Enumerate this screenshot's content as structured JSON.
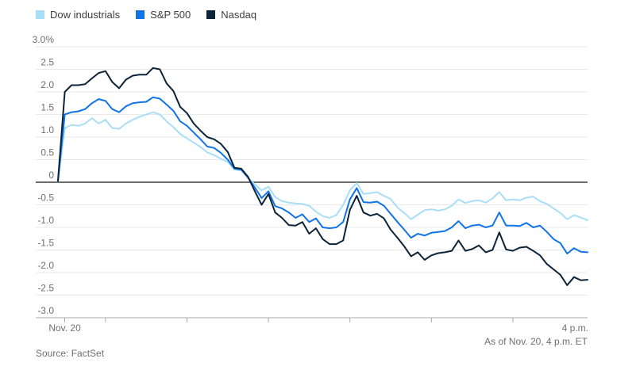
{
  "footer": {
    "source": "Source: FactSet",
    "as_of": "As of Nov. 20, 4 p.m. ET"
  },
  "colors": {
    "gridline": "#e9e9e9",
    "zero_line": "#3d3d3d",
    "axis_line": "#a9a9a9",
    "tick_label": "#6f6f6f",
    "legend_text": "#3d3d3d",
    "background": "#ffffff"
  },
  "chart_data": {
    "type": "line",
    "title": "",
    "unit": "%",
    "grid": "horizontal",
    "legend_position": "top-left",
    "x_values_minutes": [
      0,
      5,
      10,
      15,
      20,
      25,
      30,
      35,
      40,
      45,
      50,
      55,
      60,
      65,
      70,
      75,
      80,
      85,
      90,
      95,
      100,
      105,
      110,
      115,
      120,
      125,
      130,
      135,
      140,
      145,
      150,
      155,
      160,
      165,
      170,
      175,
      180,
      185,
      190,
      195,
      200,
      205,
      210,
      215,
      220,
      225,
      230,
      235,
      240,
      245,
      250,
      255,
      260,
      265,
      270,
      275,
      280,
      285,
      290,
      295,
      300,
      305,
      310,
      315,
      320,
      325,
      330,
      335,
      340,
      345,
      350,
      355,
      360,
      365,
      370,
      375,
      380,
      385,
      390
    ],
    "x_axis": {
      "range_minutes": [
        0,
        390
      ],
      "tick_positions_minutes": [
        5,
        35,
        95,
        155,
        215,
        275,
        335
      ],
      "first_tick_label": "Nov. 20",
      "end_label": "4 p.m."
    },
    "y_axis": {
      "range": [
        -3.0,
        3.0
      ],
      "step": 0.5,
      "zero_baseline": true,
      "ticks": [
        {
          "value": 3.0,
          "label": "3.0%"
        },
        {
          "value": 2.5,
          "label": "2.5"
        },
        {
          "value": 2.0,
          "label": "2.0"
        },
        {
          "value": 1.5,
          "label": "1.5"
        },
        {
          "value": 1.0,
          "label": "1.0"
        },
        {
          "value": 0.5,
          "label": "0.5"
        },
        {
          "value": 0,
          "label": "0"
        },
        {
          "value": -0.5,
          "label": "-0.5"
        },
        {
          "value": -1.0,
          "label": "-1.0"
        },
        {
          "value": -1.5,
          "label": "-1.5"
        },
        {
          "value": -2.0,
          "label": "-2.0"
        },
        {
          "value": -2.5,
          "label": "-2.5"
        },
        {
          "value": -3.0,
          "label": "-3.0"
        }
      ]
    },
    "series": [
      {
        "name": "Dow industrials",
        "color": "#a8def8",
        "values": [
          0.03,
          1.2,
          1.27,
          1.25,
          1.3,
          1.42,
          1.3,
          1.38,
          1.2,
          1.18,
          1.3,
          1.38,
          1.45,
          1.5,
          1.55,
          1.5,
          1.35,
          1.22,
          1.07,
          0.97,
          0.88,
          0.78,
          0.66,
          0.6,
          0.52,
          0.45,
          0.28,
          0.26,
          0.1,
          -0.05,
          -0.18,
          -0.1,
          -0.33,
          -0.42,
          -0.45,
          -0.47,
          -0.48,
          -0.52,
          -0.65,
          -0.75,
          -0.79,
          -0.73,
          -0.5,
          -0.18,
          -0.02,
          -0.26,
          -0.24,
          -0.22,
          -0.3,
          -0.37,
          -0.56,
          -0.68,
          -0.82,
          -0.72,
          -0.62,
          -0.6,
          -0.63,
          -0.6,
          -0.52,
          -0.38,
          -0.46,
          -0.42,
          -0.4,
          -0.45,
          -0.36,
          -0.22,
          -0.4,
          -0.38,
          -0.4,
          -0.34,
          -0.32,
          -0.42,
          -0.48,
          -0.58,
          -0.68,
          -0.82,
          -0.73,
          -0.78,
          -0.84
        ]
      },
      {
        "name": "S&P 500",
        "color": "#1173e8",
        "values": [
          0.03,
          1.5,
          1.55,
          1.57,
          1.62,
          1.75,
          1.84,
          1.8,
          1.62,
          1.55,
          1.68,
          1.75,
          1.77,
          1.78,
          1.88,
          1.85,
          1.72,
          1.58,
          1.35,
          1.25,
          1.1,
          0.95,
          0.79,
          0.76,
          0.65,
          0.5,
          0.3,
          0.28,
          0.1,
          -0.12,
          -0.35,
          -0.2,
          -0.53,
          -0.58,
          -0.67,
          -0.79,
          -0.71,
          -0.88,
          -0.8,
          -1.0,
          -1.02,
          -1.0,
          -0.88,
          -0.38,
          -0.13,
          -0.44,
          -0.45,
          -0.43,
          -0.52,
          -0.7,
          -0.88,
          -1.05,
          -1.23,
          -1.14,
          -1.18,
          -1.12,
          -1.1,
          -1.08,
          -1.0,
          -0.86,
          -1.02,
          -0.96,
          -0.94,
          -1.0,
          -0.96,
          -0.67,
          -0.96,
          -0.96,
          -0.97,
          -0.9,
          -1.0,
          -0.96,
          -1.1,
          -1.26,
          -1.35,
          -1.58,
          -1.46,
          -1.54,
          -1.55
        ]
      },
      {
        "name": "Nasdaq",
        "color": "#0d2338",
        "values": [
          0.03,
          2.0,
          2.15,
          2.15,
          2.17,
          2.3,
          2.42,
          2.46,
          2.22,
          2.08,
          2.27,
          2.36,
          2.38,
          2.38,
          2.53,
          2.5,
          2.19,
          2.02,
          1.67,
          1.53,
          1.3,
          1.14,
          1.0,
          0.95,
          0.85,
          0.67,
          0.32,
          0.3,
          0.12,
          -0.2,
          -0.5,
          -0.26,
          -0.67,
          -0.79,
          -0.95,
          -0.96,
          -0.88,
          -1.14,
          -1.02,
          -1.26,
          -1.37,
          -1.37,
          -1.29,
          -0.61,
          -0.3,
          -0.67,
          -0.74,
          -0.7,
          -0.8,
          -1.05,
          -1.23,
          -1.42,
          -1.64,
          -1.55,
          -1.72,
          -1.62,
          -1.57,
          -1.55,
          -1.52,
          -1.29,
          -1.52,
          -1.48,
          -1.4,
          -1.55,
          -1.5,
          -1.11,
          -1.49,
          -1.52,
          -1.45,
          -1.43,
          -1.52,
          -1.62,
          -1.81,
          -1.93,
          -2.05,
          -2.28,
          -2.1,
          -2.17,
          -2.16
        ]
      }
    ]
  }
}
